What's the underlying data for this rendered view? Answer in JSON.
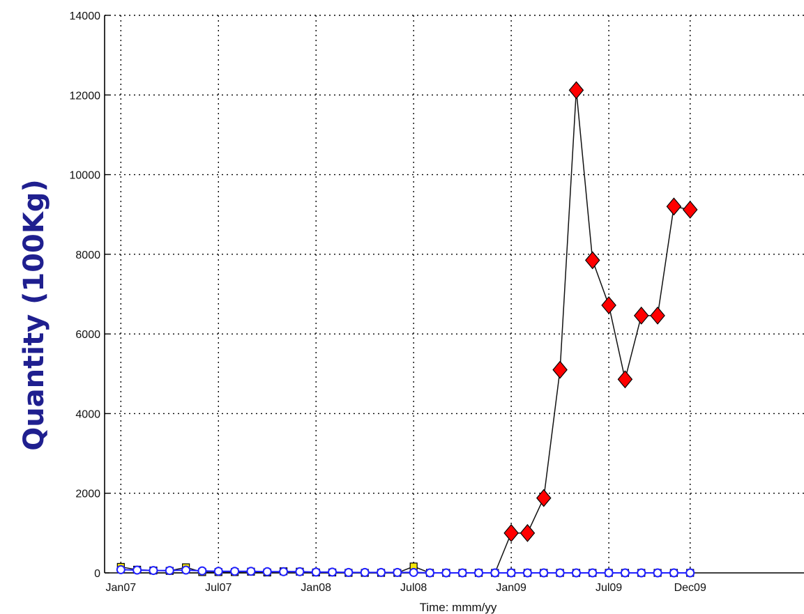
{
  "chart_data": {
    "type": "line",
    "title": "",
    "xlabel": "Time: mmm/yy",
    "ylabel": "Quantity (100Kg)",
    "xlim": [
      "2006-12",
      "2010-07"
    ],
    "ylim": [
      0,
      14000
    ],
    "grid": true,
    "legend": "none",
    "x_ticks": [
      {
        "x": "2007-01",
        "label": "Jan07"
      },
      {
        "x": "2007-07",
        "label": "Jul07"
      },
      {
        "x": "2008-01",
        "label": "Jan08"
      },
      {
        "x": "2008-07",
        "label": "Jul08"
      },
      {
        "x": "2009-01",
        "label": "Jan09"
      },
      {
        "x": "2009-07",
        "label": "Jul09"
      },
      {
        "x": "2009-12",
        "label": "Dec09"
      }
    ],
    "y_ticks": [
      0,
      2000,
      4000,
      6000,
      8000,
      10000,
      12000,
      14000
    ],
    "series": [
      {
        "marker": "square",
        "color": "#f5e60a",
        "x": [
          "2007-01",
          "2007-02",
          "2007-03",
          "2007-04",
          "2007-05",
          "2007-06",
          "2007-07",
          "2007-08",
          "2007-09",
          "2007-10",
          "2007-11",
          "2007-12",
          "2008-01",
          "2008-02",
          "2008-03",
          "2008-04",
          "2008-05",
          "2008-06",
          "2008-07",
          "2008-08",
          "2008-09",
          "2008-10",
          "2008-11",
          "2008-12",
          "2009-01",
          "2009-02",
          "2009-03",
          "2009-04",
          "2009-05",
          "2009-06",
          "2009-07",
          "2009-08",
          "2009-09",
          "2009-10",
          "2009-11",
          "2009-12"
        ],
        "y": [
          150,
          80,
          60,
          50,
          140,
          20,
          20,
          20,
          30,
          10,
          40,
          30,
          10,
          10,
          0,
          0,
          0,
          0,
          160,
          0,
          0,
          0,
          0,
          0,
          0,
          0,
          0,
          0,
          0,
          0,
          0,
          0,
          0,
          0,
          0,
          0
        ]
      },
      {
        "marker": "diamond",
        "color": "#ff0000",
        "x": [
          "2007-01",
          "2007-02",
          "2007-03",
          "2007-04",
          "2007-05",
          "2007-06",
          "2007-07",
          "2007-08",
          "2007-09",
          "2007-10",
          "2007-11",
          "2007-12",
          "2008-01",
          "2008-02",
          "2008-03",
          "2008-04",
          "2008-05",
          "2008-06",
          "2008-07",
          "2008-08",
          "2008-09",
          "2008-10",
          "2008-11",
          "2008-12",
          "2009-01",
          "2009-02",
          "2009-03",
          "2009-04",
          "2009-05",
          "2009-06",
          "2009-07",
          "2009-08",
          "2009-09",
          "2009-10",
          "2009-11",
          "2009-12"
        ],
        "y": [
          0,
          0,
          0,
          0,
          0,
          0,
          0,
          0,
          0,
          0,
          0,
          0,
          0,
          0,
          0,
          0,
          0,
          0,
          0,
          0,
          0,
          0,
          0,
          0,
          1000,
          1000,
          1880,
          5100,
          12120,
          7850,
          6720,
          4860,
          6460,
          6460,
          9200,
          9120
        ],
        "marker_from_index": 24
      },
      {
        "marker": "circle",
        "color": "#1f1fff",
        "x": [
          "2007-01",
          "2007-02",
          "2007-03",
          "2007-04",
          "2007-05",
          "2007-06",
          "2007-07",
          "2007-08",
          "2007-09",
          "2007-10",
          "2007-11",
          "2007-12",
          "2008-01",
          "2008-02",
          "2008-03",
          "2008-04",
          "2008-05",
          "2008-06",
          "2008-07",
          "2008-08",
          "2008-09",
          "2008-10",
          "2008-11",
          "2008-12",
          "2009-01",
          "2009-02",
          "2009-03",
          "2009-04",
          "2009-05",
          "2009-06",
          "2009-07",
          "2009-08",
          "2009-09",
          "2009-10",
          "2009-11",
          "2009-12"
        ],
        "y": [
          80,
          70,
          60,
          60,
          70,
          50,
          40,
          40,
          40,
          30,
          30,
          30,
          20,
          20,
          10,
          10,
          10,
          10,
          10,
          0,
          0,
          0,
          0,
          0,
          0,
          0,
          0,
          0,
          0,
          0,
          0,
          0,
          0,
          0,
          0,
          0
        ]
      }
    ]
  }
}
